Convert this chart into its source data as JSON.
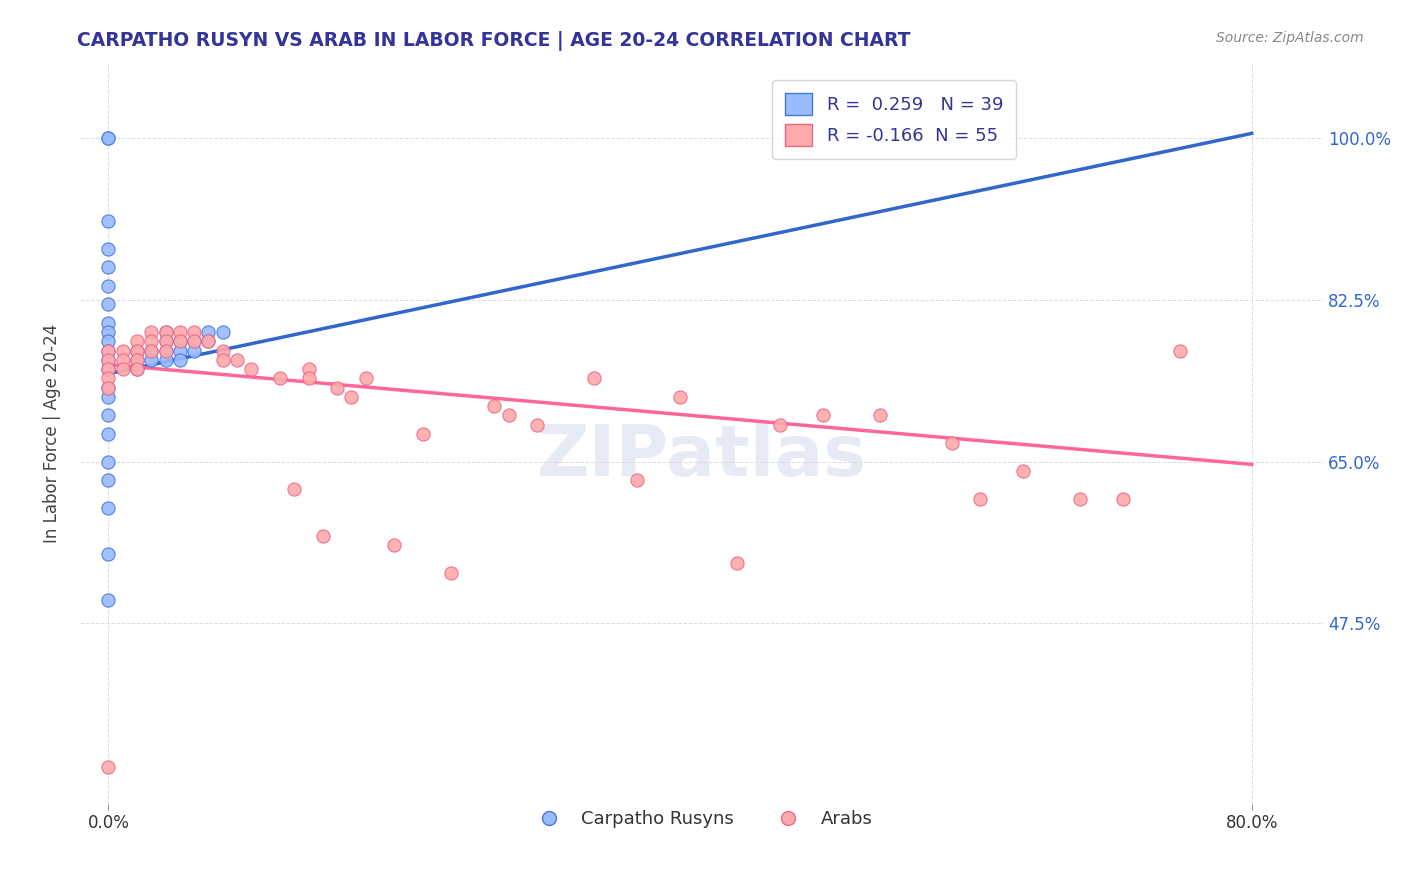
{
  "title": "CARPATHO RUSYN VS ARAB IN LABOR FORCE | AGE 20-24 CORRELATION CHART",
  "source_text": "Source: ZipAtlas.com",
  "ylabel": "In Labor Force | Age 20-24",
  "legend_entries": [
    "Carpatho Rusyns",
    "Arabs"
  ],
  "r_blue": 0.259,
  "n_blue": 39,
  "r_pink": -0.166,
  "n_pink": 55,
  "y_ticks": [
    0.475,
    0.65,
    0.825,
    1.0
  ],
  "y_tick_labels": [
    "47.5%",
    "65.0%",
    "82.5%",
    "100.0%"
  ],
  "xlim": [
    -0.02,
    0.85
  ],
  "ylim": [
    0.28,
    1.08
  ],
  "blue_color": "#99BBFF",
  "pink_color": "#FFAAAA",
  "blue_edge_color": "#4477DD",
  "pink_edge_color": "#EE6688",
  "blue_line_color": "#3366CC",
  "pink_line_color": "#FF6699",
  "watermark": "ZIPatlas",
  "blue_line_x0": 0.0,
  "blue_line_y0": 0.745,
  "blue_line_x1": 0.8,
  "blue_line_y1": 1.005,
  "pink_line_x0": 0.0,
  "pink_line_y0": 0.755,
  "pink_line_x1": 0.8,
  "pink_line_y1": 0.647,
  "blue_scatter_x": [
    0.0,
    0.0,
    0.0,
    0.0,
    0.0,
    0.0,
    0.0,
    0.0,
    0.0,
    0.0,
    0.0,
    0.0,
    0.0,
    0.0,
    0.0,
    0.0,
    0.0,
    0.0,
    0.0,
    0.0,
    0.02,
    0.02,
    0.02,
    0.03,
    0.03,
    0.04,
    0.04,
    0.04,
    0.04,
    0.05,
    0.05,
    0.05,
    0.06,
    0.06,
    0.07,
    0.07,
    0.08,
    0.0,
    0.0
  ],
  "blue_scatter_y": [
    1.0,
    1.0,
    0.91,
    0.88,
    0.86,
    0.84,
    0.82,
    0.8,
    0.79,
    0.78,
    0.77,
    0.76,
    0.75,
    0.73,
    0.72,
    0.7,
    0.68,
    0.65,
    0.63,
    0.6,
    0.77,
    0.76,
    0.75,
    0.77,
    0.76,
    0.79,
    0.78,
    0.77,
    0.76,
    0.78,
    0.77,
    0.76,
    0.78,
    0.77,
    0.79,
    0.78,
    0.79,
    0.55,
    0.5
  ],
  "pink_scatter_x": [
    0.0,
    0.0,
    0.0,
    0.0,
    0.0,
    0.01,
    0.01,
    0.01,
    0.02,
    0.02,
    0.02,
    0.02,
    0.03,
    0.03,
    0.03,
    0.04,
    0.04,
    0.04,
    0.05,
    0.05,
    0.06,
    0.06,
    0.07,
    0.08,
    0.08,
    0.09,
    0.1,
    0.12,
    0.13,
    0.14,
    0.14,
    0.15,
    0.16,
    0.17,
    0.18,
    0.2,
    0.22,
    0.24,
    0.27,
    0.28,
    0.3,
    0.34,
    0.37,
    0.4,
    0.44,
    0.47,
    0.5,
    0.54,
    0.59,
    0.61,
    0.64,
    0.68,
    0.71,
    0.75,
    0.0
  ],
  "pink_scatter_y": [
    0.77,
    0.76,
    0.75,
    0.74,
    0.73,
    0.77,
    0.76,
    0.75,
    0.78,
    0.77,
    0.76,
    0.75,
    0.79,
    0.78,
    0.77,
    0.79,
    0.78,
    0.77,
    0.79,
    0.78,
    0.79,
    0.78,
    0.78,
    0.77,
    0.76,
    0.76,
    0.75,
    0.74,
    0.62,
    0.75,
    0.74,
    0.57,
    0.73,
    0.72,
    0.74,
    0.56,
    0.68,
    0.53,
    0.71,
    0.7,
    0.69,
    0.74,
    0.63,
    0.72,
    0.54,
    0.69,
    0.7,
    0.7,
    0.67,
    0.61,
    0.64,
    0.61,
    0.61,
    0.77,
    0.32
  ]
}
